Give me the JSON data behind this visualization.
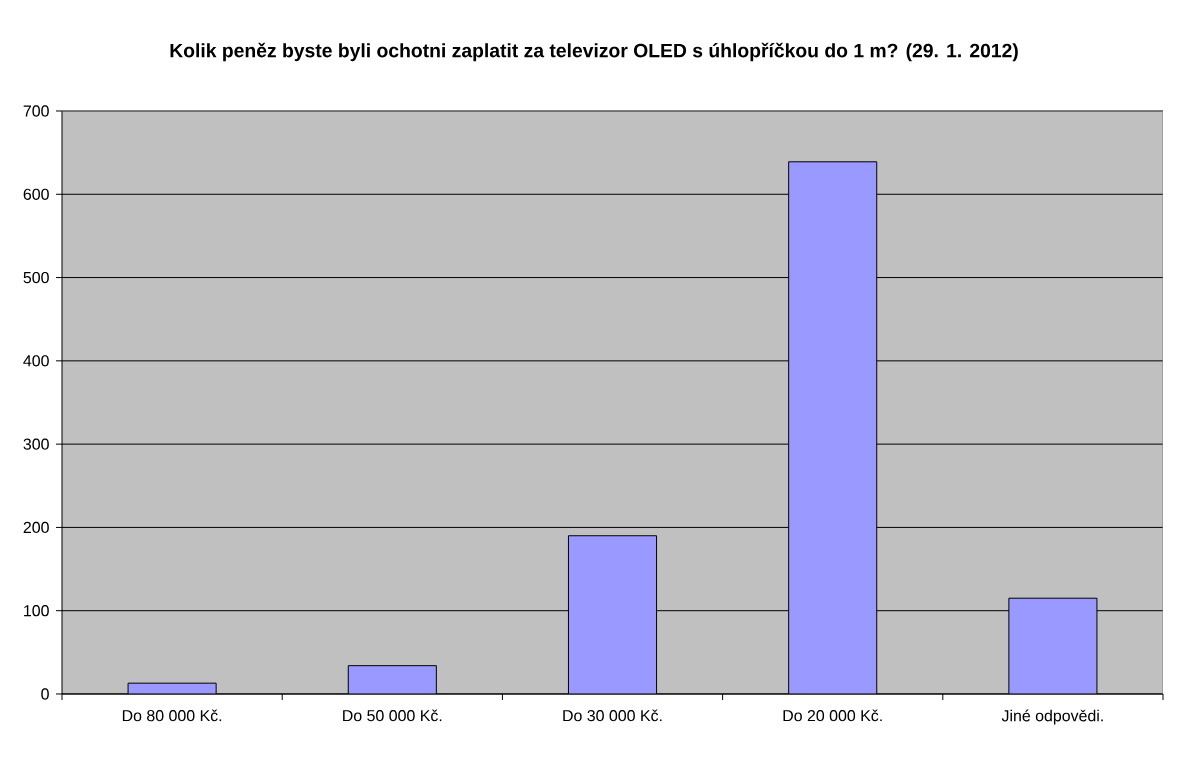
{
  "chart_data": {
    "type": "bar",
    "title": "Kolik peněz byste byli ochotni zaplatit za televizor OLED s úhlopříčkou do 1 m? (29. 1. 2012)",
    "categories": [
      "Do 80 000 Kč.",
      "Do 50 000 Kč.",
      "Do 30 000 Kč.",
      "Do 20 000 Kč.",
      "Jiné odpovědi."
    ],
    "values": [
      13,
      34,
      190,
      639,
      115
    ],
    "color": "#9999ff",
    "ylim": [
      0,
      700
    ],
    "yticks": [
      0,
      100,
      200,
      300,
      400,
      500,
      600,
      700
    ],
    "grid": "y"
  }
}
